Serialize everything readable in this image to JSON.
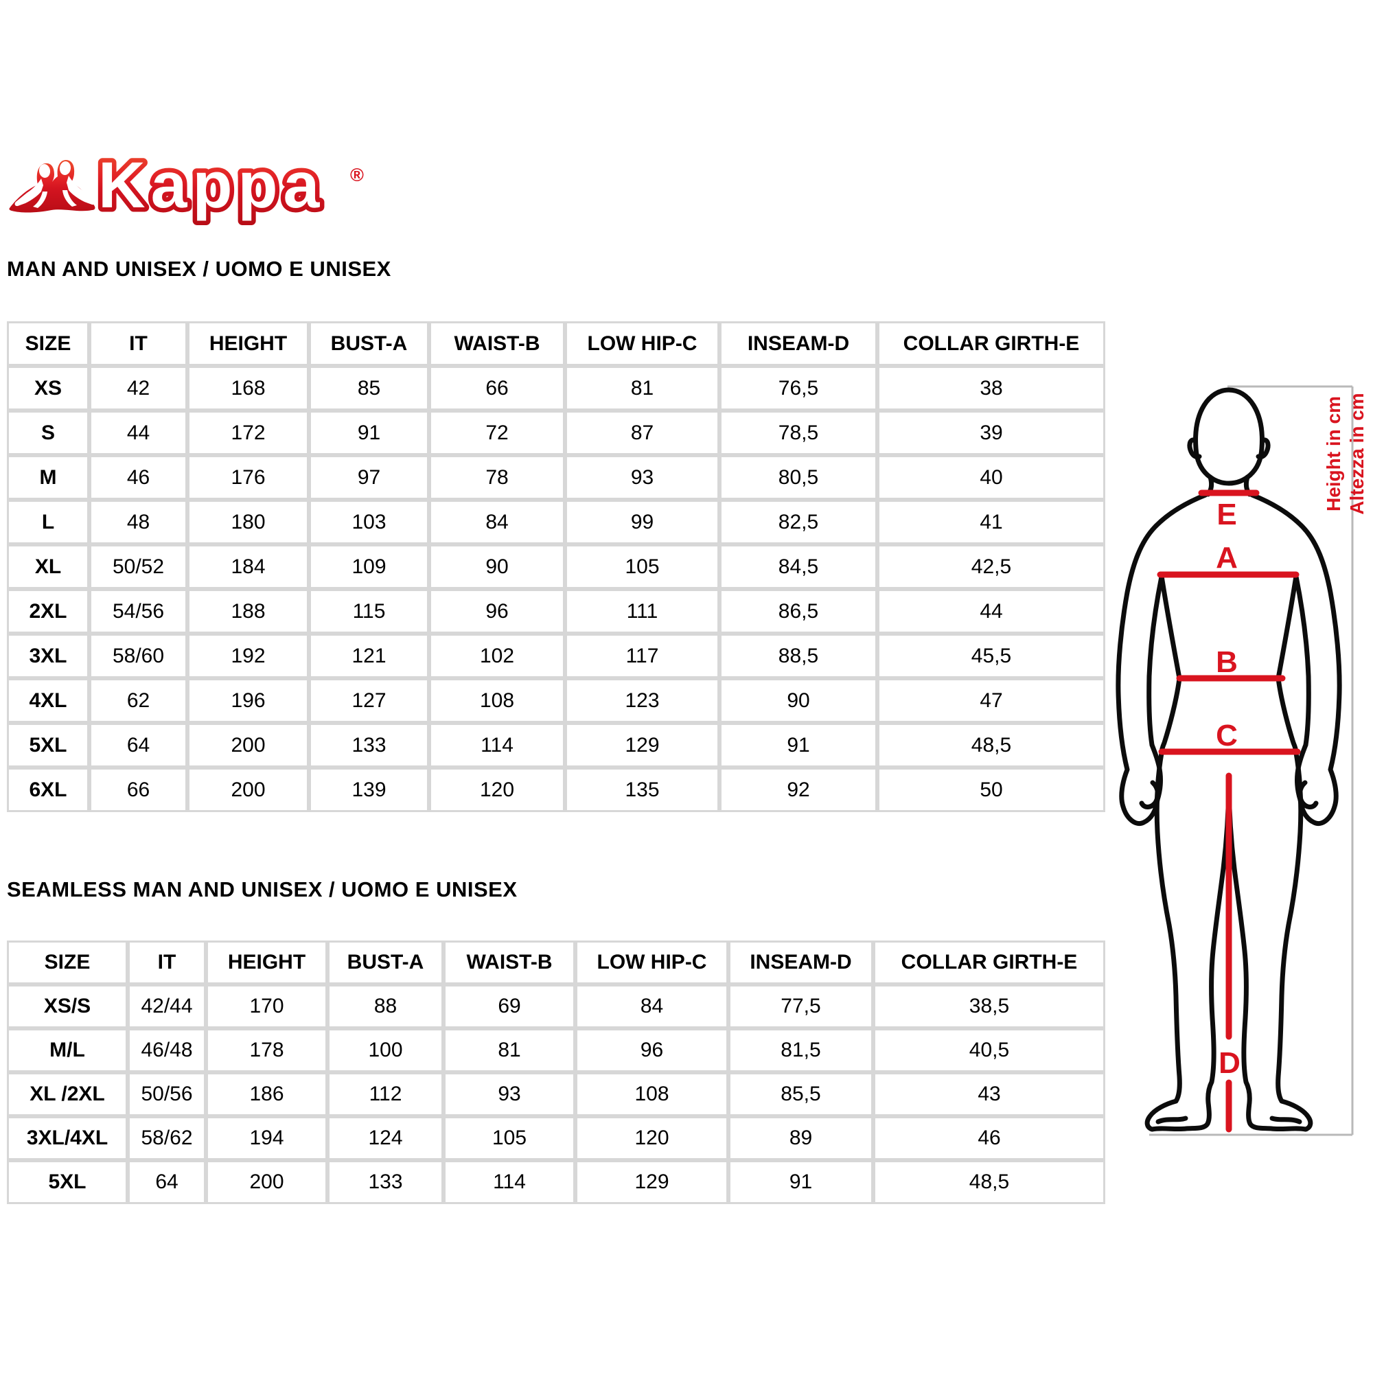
{
  "brand": {
    "name": "Kappa",
    "registered_mark": "®"
  },
  "sections": {
    "man": {
      "title": "MAN AND UNISEX / UOMO E UNISEX",
      "table": {
        "headers": [
          "SIZE",
          "IT",
          "HEIGHT",
          "BUST-A",
          "WAIST-B",
          "LOW HIP-C",
          "INSEAM-D",
          "COLLAR GIRTH-E"
        ],
        "rows": [
          [
            "XS",
            "42",
            "168",
            "85",
            "66",
            "81",
            "76,5",
            "38"
          ],
          [
            "S",
            "44",
            "172",
            "91",
            "72",
            "87",
            "78,5",
            "39"
          ],
          [
            "M",
            "46",
            "176",
            "97",
            "78",
            "93",
            "80,5",
            "40"
          ],
          [
            "L",
            "48",
            "180",
            "103",
            "84",
            "99",
            "82,5",
            "41"
          ],
          [
            "XL",
            "50/52",
            "184",
            "109",
            "90",
            "105",
            "84,5",
            "42,5"
          ],
          [
            "2XL",
            "54/56",
            "188",
            "115",
            "96",
            "111",
            "86,5",
            "44"
          ],
          [
            "3XL",
            "58/60",
            "192",
            "121",
            "102",
            "117",
            "88,5",
            "45,5"
          ],
          [
            "4XL",
            "62",
            "196",
            "127",
            "108",
            "123",
            "90",
            "47"
          ],
          [
            "5XL",
            "64",
            "200",
            "133",
            "114",
            "129",
            "91",
            "48,5"
          ],
          [
            "6XL",
            "66",
            "200",
            "139",
            "120",
            "135",
            "92",
            "50"
          ]
        ]
      }
    },
    "seamless": {
      "title": "SEAMLESS MAN AND UNISEX / UOMO E UNISEX",
      "table": {
        "headers": [
          "SIZE",
          "IT",
          "HEIGHT",
          "BUST-A",
          "WAIST-B",
          "LOW HIP-C",
          "INSEAM-D",
          "COLLAR GIRTH-E"
        ],
        "rows": [
          [
            "XS/S",
            "42/44",
            "170",
            "88",
            "69",
            "84",
            "77,5",
            "38,5"
          ],
          [
            "M/L",
            "46/48",
            "178",
            "100",
            "81",
            "96",
            "81,5",
            "40,5"
          ],
          [
            "XL /2XL",
            "50/56",
            "186",
            "112",
            "93",
            "108",
            "85,5",
            "43"
          ],
          [
            "3XL/4XL",
            "58/62",
            "194",
            "124",
            "105",
            "120",
            "89",
            "46"
          ],
          [
            "5XL",
            "64",
            "200",
            "133",
            "114",
            "129",
            "91",
            "48,5"
          ]
        ]
      }
    }
  },
  "diagram": {
    "measure_labels": {
      "collar": "E",
      "bust": "A",
      "waist": "B",
      "low_hip": "C",
      "inseam": "D"
    },
    "axis_note_en": "Height in cm",
    "axis_note_it": "Altezza in cm"
  },
  "colors": {
    "accent_red": "#d9141f",
    "logo_red_top": "#ee4d2e",
    "logo_red_bottom": "#b90d16",
    "table_border": "#d7d7d7",
    "dimension_line": "#b9b9b9",
    "text": "#000000"
  }
}
